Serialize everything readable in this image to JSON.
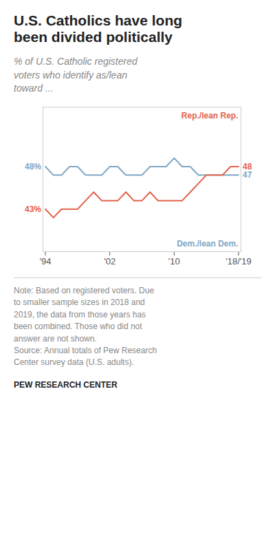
{
  "chart_data": {
    "type": "line",
    "title": "U.S. Catholics have long\nbeen divided politically",
    "subtitle": "% of U.S. Catholic registered\nvoters who identify as/lean\ntoward ...",
    "x": [
      1994,
      1995,
      1996,
      1997,
      1998,
      1999,
      2000,
      2001,
      2002,
      2003,
      2004,
      2005,
      2006,
      2007,
      2008,
      2009,
      2010,
      2011,
      2012,
      2013,
      2014,
      2015,
      2016,
      2017,
      2018
    ],
    "series": [
      {
        "name": "Dem./lean Dem.",
        "color": "#7ea6c4",
        "values": [
          48,
          47,
          47,
          48,
          48,
          47,
          47,
          47,
          48,
          48,
          47,
          47,
          47,
          48,
          48,
          48,
          49,
          48,
          48,
          47,
          47,
          47,
          47,
          47,
          47
        ],
        "value_labels": [
          "48%",
          null,
          null,
          null,
          null,
          null,
          null,
          null,
          null,
          null,
          null,
          null,
          null,
          null,
          null,
          null,
          null,
          null,
          null,
          null,
          null,
          null,
          null,
          null,
          "47"
        ]
      },
      {
        "name": "Rep./lean Rep.",
        "color": "#e3614a",
        "values": [
          43,
          42,
          43,
          43,
          43,
          44,
          45,
          44,
          44,
          44,
          45,
          44,
          44,
          45,
          44,
          44,
          44,
          44,
          45,
          46,
          47,
          47,
          47,
          48,
          48
        ],
        "value_labels": [
          "43%",
          null,
          null,
          null,
          null,
          null,
          null,
          null,
          null,
          null,
          null,
          null,
          null,
          null,
          null,
          null,
          null,
          null,
          null,
          null,
          null,
          null,
          null,
          null,
          "48"
        ]
      }
    ],
    "xlim": [
      1993.7,
      2018.3
    ],
    "xticks": [
      {
        "value": 1994,
        "label": "'94"
      },
      {
        "value": 2002,
        "label": "'02"
      },
      {
        "value": 2010,
        "label": "'10"
      },
      {
        "value": 2018,
        "label": "'18/'19"
      }
    ],
    "ylim": [
      38,
      55
    ],
    "tick_labels": "x",
    "grid": false,
    "note": "Note: Based on registered voters. Due\nto smaller sample sizes in 2018 and\n2019, the data from those years has\nbeen combined. Those who did not\nanswer are not shown.\nSource: Annual totals of Pew Research\nCenter survey data (U.S. adults).",
    "source": "PEW RESEARCH CENTER"
  }
}
